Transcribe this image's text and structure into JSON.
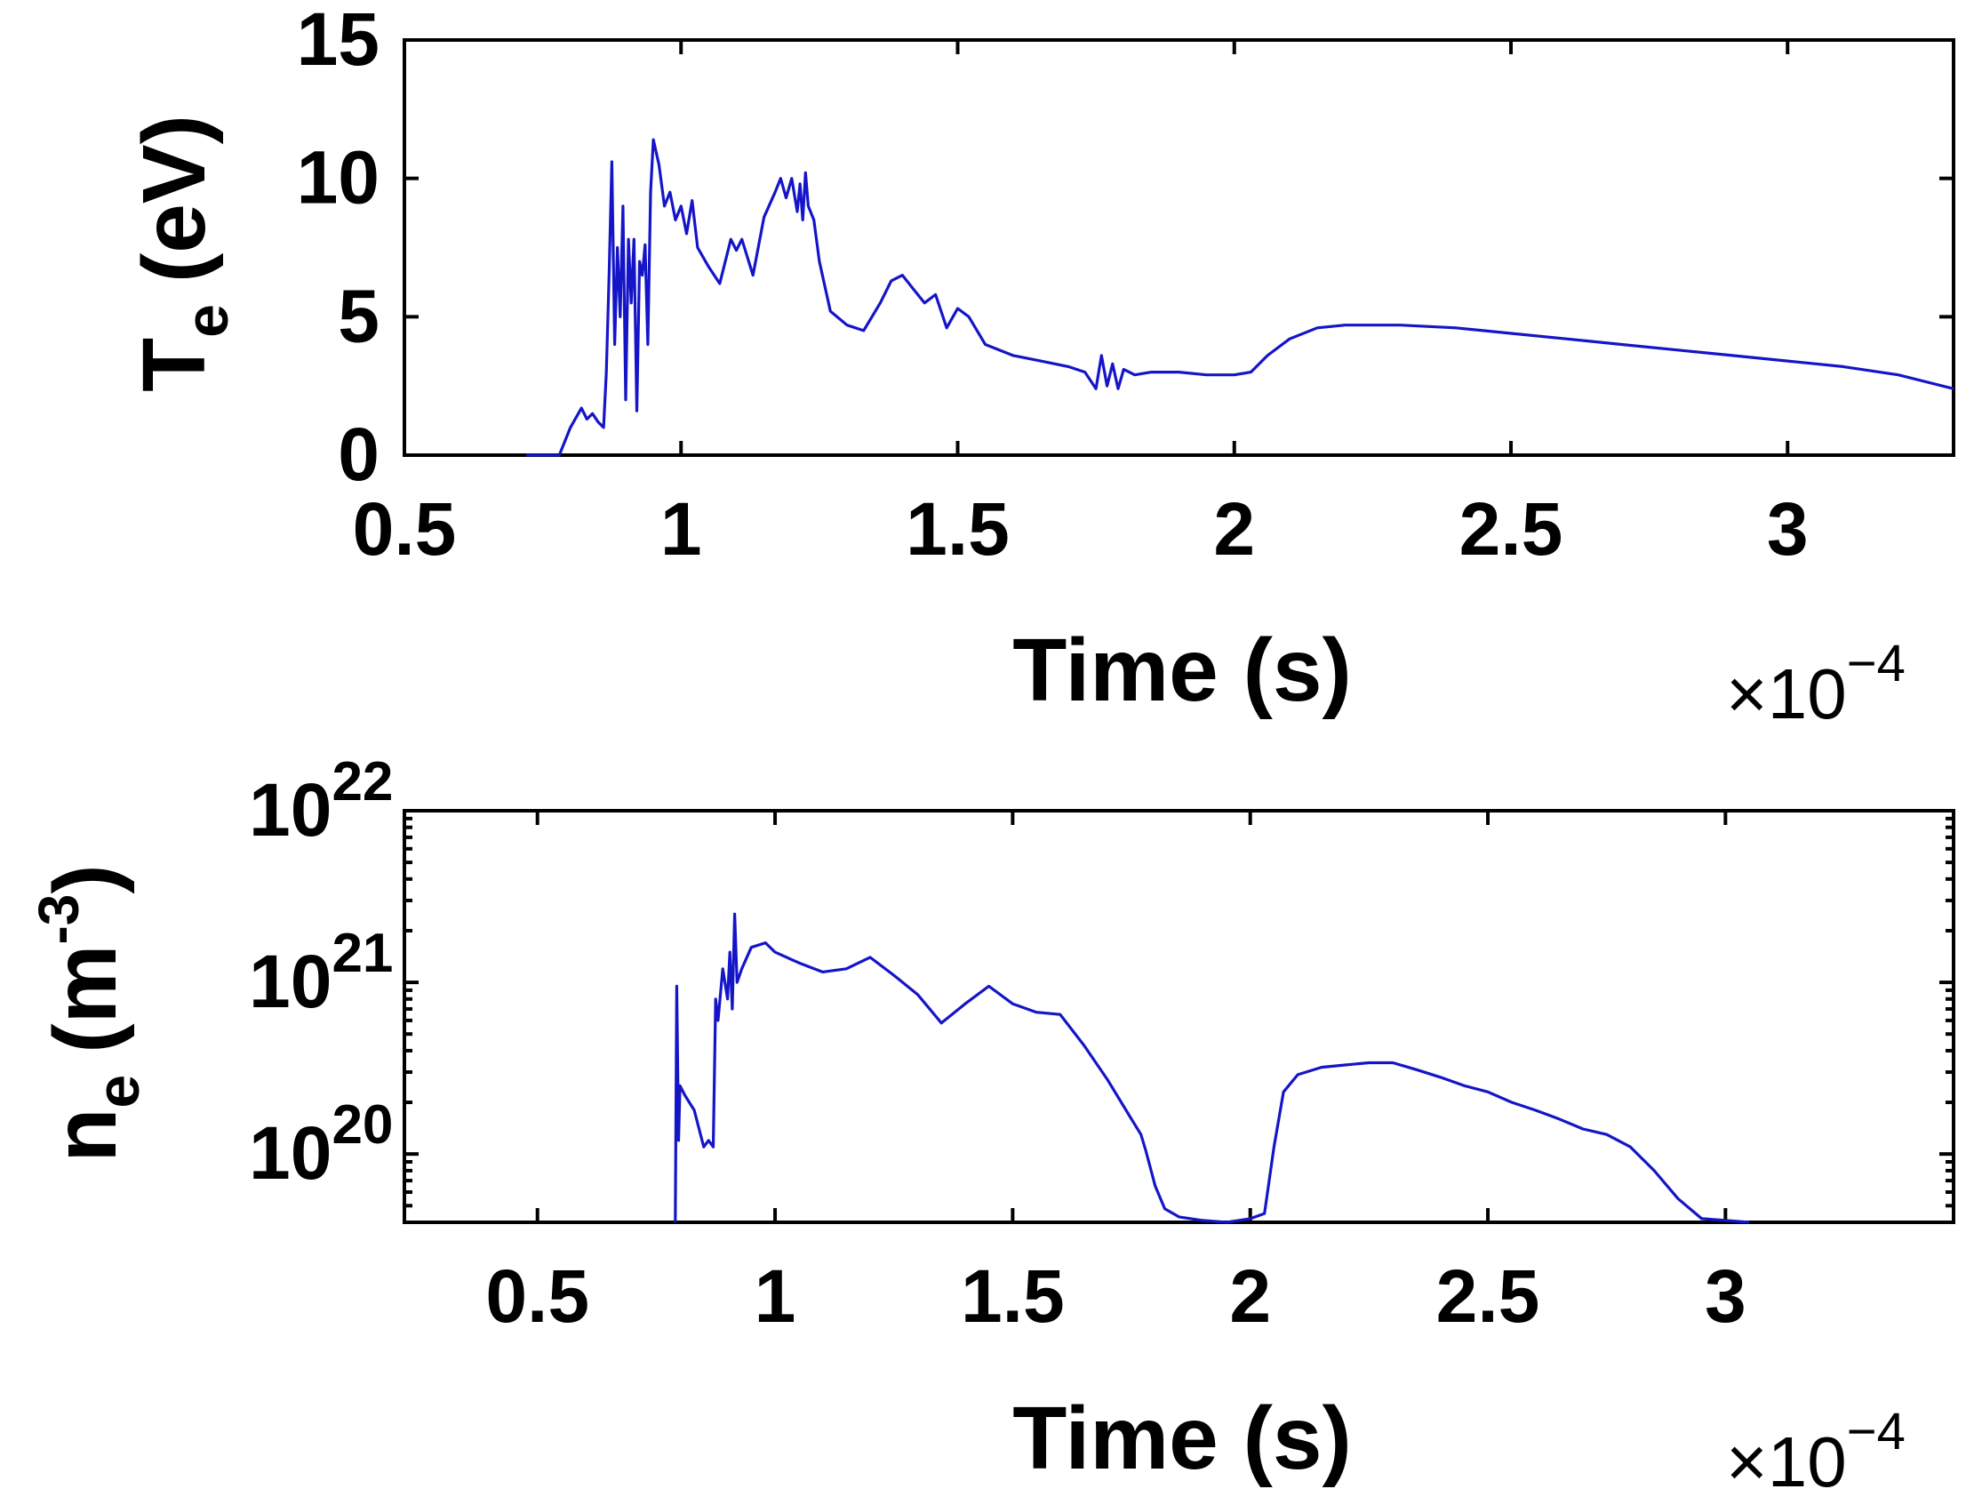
{
  "chart_data": [
    {
      "type": "line",
      "ylabel": "T",
      "ylabel_subscript": "e",
      "ylabel_unit": "(eV)",
      "xlabel": "Time (s)",
      "x_multiplier_text": "×10",
      "x_multiplier_exp": "−4",
      "x_unit_scale": 0.0001,
      "xlim": [
        0.5,
        3.3
      ],
      "ylim": [
        0,
        15
      ],
      "y_scale": "linear",
      "x_ticks": [
        0.5,
        1,
        1.5,
        2,
        2.5,
        3
      ],
      "x_tick_labels": [
        "0.5",
        "1",
        "1.5",
        "2",
        "2.5",
        "3"
      ],
      "y_ticks": [
        0,
        5,
        10,
        15
      ],
      "y_tick_labels": [
        "0",
        "5",
        "10",
        "15"
      ],
      "grid": false,
      "color": "#1515c8",
      "series": [
        {
          "x": [
            0.72,
            0.78,
            0.8,
            0.82,
            0.83,
            0.84,
            0.85,
            0.86,
            0.865,
            0.87,
            0.875,
            0.88,
            0.885,
            0.89,
            0.895,
            0.9,
            0.905,
            0.91,
            0.915,
            0.92,
            0.925,
            0.93,
            0.935,
            0.94,
            0.945,
            0.95,
            0.96,
            0.97,
            0.98,
            0.99,
            1.0,
            1.01,
            1.02,
            1.03,
            1.05,
            1.07,
            1.09,
            1.1,
            1.11,
            1.13,
            1.15,
            1.17,
            1.18,
            1.19,
            1.2,
            1.21,
            1.215,
            1.22,
            1.225,
            1.23,
            1.24,
            1.25,
            1.27,
            1.3,
            1.33,
            1.36,
            1.38,
            1.4,
            1.42,
            1.44,
            1.46,
            1.48,
            1.5,
            1.52,
            1.55,
            1.6,
            1.65,
            1.7,
            1.73,
            1.75,
            1.76,
            1.77,
            1.78,
            1.79,
            1.8,
            1.82,
            1.85,
            1.9,
            1.95,
            2.0,
            2.03,
            2.06,
            2.1,
            2.15,
            2.2,
            2.3,
            2.4,
            2.5,
            2.6,
            2.7,
            2.8,
            2.9,
            3.0,
            3.1,
            3.2,
            3.3
          ],
          "values": [
            0.0,
            0.0,
            1.0,
            1.7,
            1.3,
            1.5,
            1.2,
            1.0,
            3.0,
            6.5,
            10.6,
            4.0,
            7.5,
            5.0,
            9.0,
            2.0,
            7.8,
            5.5,
            7.8,
            1.6,
            7.0,
            6.5,
            7.6,
            4.0,
            9.5,
            11.4,
            10.5,
            9.0,
            9.5,
            8.5,
            9.0,
            8.0,
            9.2,
            7.5,
            6.8,
            6.2,
            7.8,
            7.4,
            7.8,
            6.5,
            8.6,
            9.5,
            10.0,
            9.3,
            10.0,
            8.8,
            9.8,
            8.5,
            10.2,
            9.0,
            8.5,
            7.0,
            5.2,
            4.7,
            4.5,
            5.5,
            6.3,
            6.5,
            6.0,
            5.5,
            5.8,
            4.6,
            5.3,
            5.0,
            4.0,
            3.6,
            3.4,
            3.2,
            3.0,
            2.4,
            3.6,
            2.5,
            3.3,
            2.4,
            3.1,
            2.9,
            3.0,
            3.0,
            2.9,
            2.9,
            3.0,
            3.6,
            4.2,
            4.6,
            4.7,
            4.7,
            4.6,
            4.4,
            4.2,
            4.0,
            3.8,
            3.6,
            3.4,
            3.2,
            2.9,
            2.4
          ]
        }
      ]
    },
    {
      "type": "line",
      "ylabel": "n",
      "ylabel_subscript": "e",
      "ylabel_unit_base": "(m",
      "ylabel_unit_exp": "-3",
      "ylabel_unit_close": ")",
      "xlabel": "Time (s)",
      "x_multiplier_text": "×10",
      "x_multiplier_exp": "−4",
      "x_unit_scale": 0.0001,
      "xlim": [
        0.22,
        3.48
      ],
      "ylim": [
        4e+19,
        1e+22
      ],
      "y_scale": "log",
      "x_ticks": [
        0.5,
        1,
        1.5,
        2,
        2.5,
        3
      ],
      "x_tick_labels": [
        "0.5",
        "1",
        "1.5",
        "2",
        "2.5",
        "3"
      ],
      "y_ticks": [
        1e+20,
        1e+21,
        1e+22
      ],
      "y_tick_labels": [
        {
          "base": "10",
          "exp": "20"
        },
        {
          "base": "10",
          "exp": "21"
        },
        {
          "base": "10",
          "exp": "22"
        }
      ],
      "grid": false,
      "color": "#1515c8",
      "series": [
        {
          "x": [
            0.79,
            0.793,
            0.797,
            0.8,
            0.81,
            0.83,
            0.85,
            0.86,
            0.87,
            0.875,
            0.88,
            0.89,
            0.9,
            0.905,
            0.91,
            0.915,
            0.92,
            0.93,
            0.95,
            0.98,
            1.0,
            1.05,
            1.1,
            1.15,
            1.2,
            1.25,
            1.3,
            1.35,
            1.4,
            1.45,
            1.5,
            1.55,
            1.6,
            1.65,
            1.7,
            1.75,
            1.77,
            1.78,
            1.8,
            1.82,
            1.85,
            1.9,
            1.95,
            2.0,
            2.03,
            2.05,
            2.07,
            2.1,
            2.15,
            2.2,
            2.25,
            2.3,
            2.35,
            2.4,
            2.45,
            2.5,
            2.55,
            2.6,
            2.65,
            2.7,
            2.75,
            2.8,
            2.85,
            2.9,
            2.95,
            3.0,
            3.05
          ],
          "values": [
            4e+19,
            9.5e+20,
            1.2e+20,
            2.5e+20,
            2.2e+20,
            1.8e+20,
            1.1e+20,
            1.2e+20,
            1.1e+20,
            8e+20,
            6e+20,
            1.2e+21,
            8e+20,
            1.5e+21,
            7e+20,
            2.5e+21,
            1e+21,
            1.2e+21,
            1.6e+21,
            1.7e+21,
            1.5e+21,
            1.3e+21,
            1.15e+21,
            1.2e+21,
            1.4e+21,
            1.1e+21,
            8.5e+20,
            5.8e+20,
            7.5e+20,
            9.5e+20,
            7.5e+20,
            6.7e+20,
            6.5e+20,
            4.3e+20,
            2.7e+20,
            1.6e+20,
            1.3e+20,
            1.05e+20,
            6.5e+19,
            4.8e+19,
            4.3e+19,
            4.1e+19,
            4e+19,
            4.2e+19,
            4.5e+19,
            1.1e+20,
            2.3e+20,
            2.9e+20,
            3.2e+20,
            3.3e+20,
            3.4e+20,
            3.4e+20,
            3.1e+20,
            2.8e+20,
            2.5e+20,
            2.3e+20,
            2e+20,
            1.8e+20,
            1.6e+20,
            1.4e+20,
            1.3e+20,
            1.1e+20,
            8e+19,
            5.5e+19,
            4.2e+19,
            4.1e+19,
            4e+19
          ]
        }
      ]
    }
  ]
}
